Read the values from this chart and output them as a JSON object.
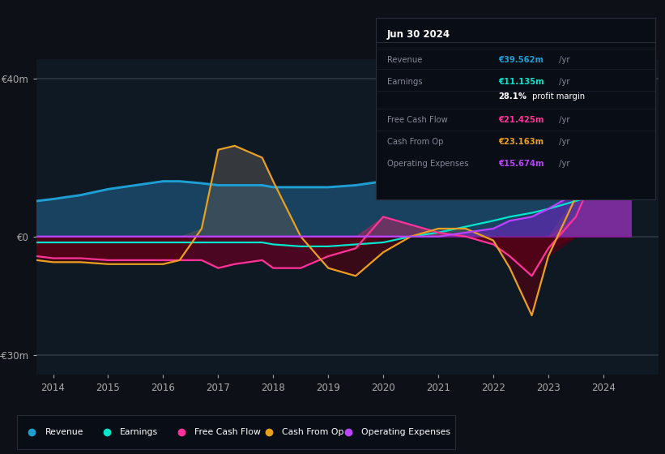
{
  "bg_color": "#0d1117",
  "plot_bg_color": "#0f1923",
  "years": [
    2013.7,
    2014,
    2014.5,
    2015,
    2015.5,
    2016,
    2016.3,
    2016.7,
    2017,
    2017.3,
    2017.8,
    2018,
    2018.5,
    2019,
    2019.5,
    2020,
    2020.5,
    2021,
    2021.5,
    2022,
    2022.3,
    2022.7,
    2023,
    2023.5,
    2024,
    2024.5
  ],
  "revenue": [
    9,
    9.5,
    10.5,
    12,
    13,
    14,
    14,
    13.5,
    13,
    13,
    13,
    12.5,
    12.5,
    12.5,
    13,
    14,
    16,
    19,
    24,
    28,
    29,
    30,
    32,
    35,
    39.5,
    40
  ],
  "earnings": [
    -1.5,
    -1.5,
    -1.5,
    -1.5,
    -1.5,
    -1.5,
    -1.5,
    -1.5,
    -1.5,
    -1.5,
    -1.5,
    -2,
    -2.5,
    -2.5,
    -2,
    -1.5,
    0,
    1,
    2.5,
    4,
    5,
    6,
    7,
    9,
    11,
    11.5
  ],
  "fcf": [
    -5,
    -5.5,
    -5.5,
    -6,
    -6,
    -6,
    -6,
    -6,
    -8,
    -7,
    -6,
    -8,
    -8,
    -5,
    -3,
    5,
    3,
    1,
    0,
    -2,
    -5,
    -10,
    -3,
    5,
    21,
    22
  ],
  "cashfromop": [
    -6,
    -6.5,
    -6.5,
    -7,
    -7,
    -7,
    -6,
    2,
    22,
    23,
    20,
    14,
    0,
    -8,
    -10,
    -4,
    0,
    2,
    2,
    -1,
    -8,
    -20,
    -5,
    10,
    23,
    24
  ],
  "opex": [
    0,
    0,
    0,
    0,
    0,
    0,
    0,
    0,
    0,
    0,
    0,
    0,
    0,
    0,
    0,
    0,
    0,
    0,
    1,
    2,
    4,
    5,
    7,
    11,
    15.5,
    16
  ],
  "revenue_color": "#1e9fd4",
  "earnings_color": "#00e5cc",
  "fcf_color": "#ff3399",
  "cashfromop_color": "#e8a020",
  "opex_color": "#bb44ff",
  "revenue_fill": "#1a5a8a",
  "ylim": [
    -35,
    45
  ],
  "ytick_vals": [
    -30,
    0,
    40
  ],
  "ytick_labels": [
    "-€30m",
    "€0",
    "€40m"
  ],
  "xlim": [
    2013.7,
    2025
  ],
  "xticks": [
    2014,
    2015,
    2016,
    2017,
    2018,
    2019,
    2020,
    2021,
    2022,
    2023,
    2024
  ],
  "info_title": "Jun 30 2024",
  "info_rows": [
    {
      "label": "Revenue",
      "value": "€39.562m",
      "color": "#1e9fd4"
    },
    {
      "label": "Earnings",
      "value": "€11.135m",
      "color": "#00e5cc"
    },
    {
      "label": "",
      "value": "28.1% profit margin",
      "color": "#ffffff"
    },
    {
      "label": "Free Cash Flow",
      "value": "€21.425m",
      "color": "#ff3399"
    },
    {
      "label": "Cash From Op",
      "value": "€23.163m",
      "color": "#e8a020"
    },
    {
      "label": "Operating Expenses",
      "value": "€15.674m",
      "color": "#bb44ff"
    }
  ],
  "legend_items": [
    {
      "label": "Revenue",
      "color": "#1e9fd4"
    },
    {
      "label": "Earnings",
      "color": "#00e5cc"
    },
    {
      "label": "Free Cash Flow",
      "color": "#ff3399"
    },
    {
      "label": "Cash From Op",
      "color": "#e8a020"
    },
    {
      "label": "Operating Expenses",
      "color": "#bb44ff"
    }
  ]
}
